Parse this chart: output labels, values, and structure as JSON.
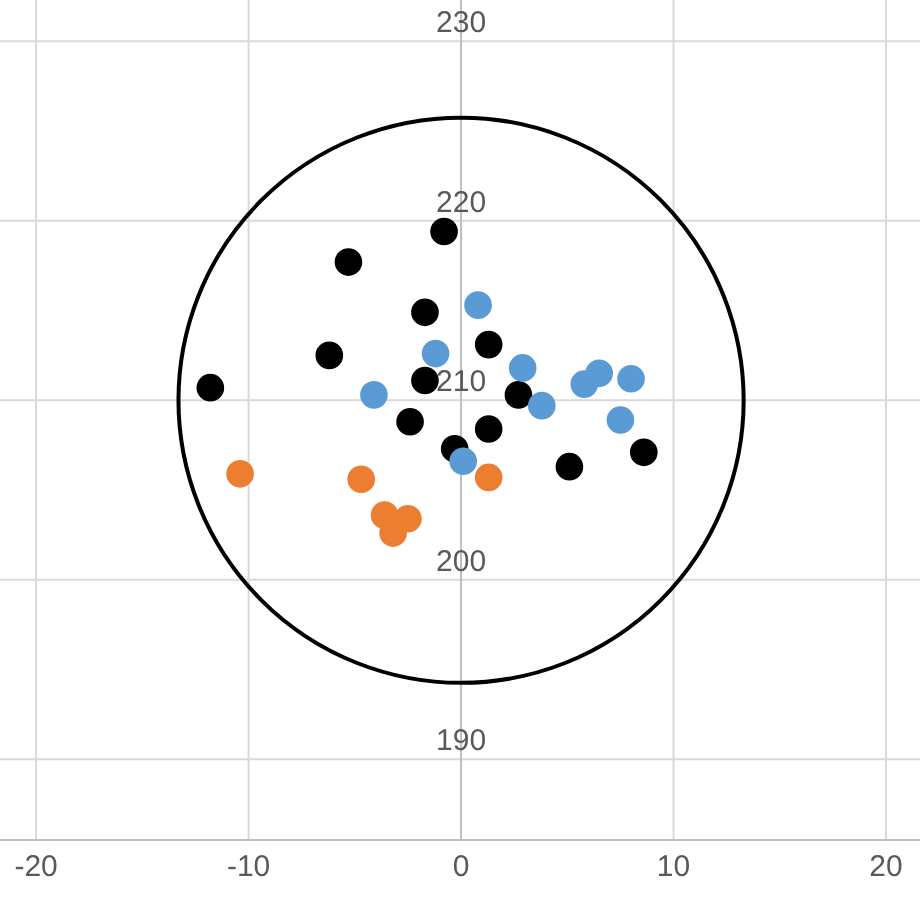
{
  "chart_data": {
    "type": "scatter",
    "xlim": [
      -21.7,
      21.6
    ],
    "xticks": [
      -20,
      -10,
      0,
      10,
      20
    ],
    "ylim": [
      185.5,
      232.3
    ],
    "yticks": [
      190,
      200,
      210,
      220,
      230
    ],
    "grid": true,
    "marker": "circle",
    "series": [
      {
        "color": "#000000",
        "x": [
          -11.8,
          -5.3,
          -0.8,
          -6.2,
          -1.7,
          1.3,
          -1.7,
          -2.4,
          -0.3,
          1.3,
          2.7,
          5.1,
          8.6
        ],
        "values": [
          210.7,
          217.7,
          219.4,
          212.5,
          214.9,
          213.1,
          211.1,
          208.8,
          207.3,
          208.4,
          210.3,
          206.3,
          207.1
        ]
      },
      {
        "color": "#5b9bd5",
        "x": [
          0.8,
          -1.2,
          -4.1,
          2.9,
          6.5,
          5.8,
          8.0,
          7.5,
          3.8,
          0.1
        ],
        "values": [
          215.3,
          212.6,
          210.3,
          211.8,
          211.5,
          210.9,
          211.2,
          208.9,
          209.7,
          206.6
        ]
      },
      {
        "color": "#ed7d31",
        "x": [
          -10.4,
          -4.7,
          -3.6,
          -2.5,
          -3.2,
          1.3
        ],
        "values": [
          205.9,
          205.6,
          203.6,
          203.4,
          202.6,
          205.7
        ]
      }
    ]
  }
}
